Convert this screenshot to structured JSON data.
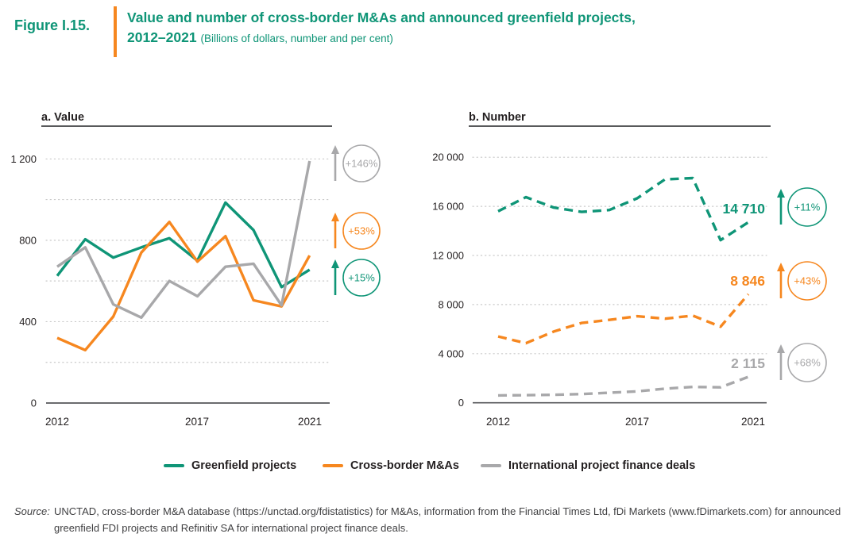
{
  "header": {
    "figure_label": "Figure I.15.",
    "title_line1": "Value and number of cross-border M&As and announced greenfield projects,",
    "title_range": "2012–2021",
    "title_subtitle": "(Billions of dollars, number and per cent)"
  },
  "colors": {
    "teal": "#0f9577",
    "orange": "#f6871f",
    "gray": "#a8a8aa",
    "dark": "#231f20",
    "axis": "#55565a",
    "grid": "#c9c9c9",
    "source_text": "#404042"
  },
  "chart_data": [
    {
      "id": "value",
      "type": "line",
      "title": "a. Value",
      "xlabel": "",
      "ylabel": "Billions of dollars",
      "x": [
        2012,
        2013,
        2014,
        2015,
        2016,
        2017,
        2018,
        2019,
        2020,
        2021
      ],
      "x_tick_labels": [
        "2012",
        "2017",
        "2021"
      ],
      "ylim": [
        0,
        1200
      ],
      "grid_step": 200,
      "y_ticks": [
        0,
        400,
        800,
        1200
      ],
      "y_tick_labels": [
        "0",
        "400",
        "800",
        "1 200"
      ],
      "series": [
        {
          "name": "Greenfield projects",
          "color_key": "teal",
          "style": "solid",
          "values": [
            625,
            805,
            715,
            765,
            810,
            700,
            985,
            850,
            570,
            655
          ]
        },
        {
          "name": "Cross-border M&As",
          "color_key": "orange",
          "style": "solid",
          "values": [
            320,
            260,
            425,
            740,
            890,
            695,
            820,
            505,
            475,
            725
          ]
        },
        {
          "name": "International project finance deals",
          "color_key": "gray",
          "style": "solid",
          "values": [
            670,
            765,
            485,
            420,
            600,
            525,
            670,
            685,
            480,
            1190
          ]
        }
      ],
      "badges": [
        {
          "label": "+146%",
          "color_key": "gray"
        },
        {
          "label": "+53%",
          "color_key": "orange"
        },
        {
          "label": "+15%",
          "color_key": "teal"
        }
      ]
    },
    {
      "id": "number",
      "type": "line",
      "title": "b. Number",
      "xlabel": "",
      "ylabel": "Number",
      "x": [
        2012,
        2013,
        2014,
        2015,
        2016,
        2017,
        2018,
        2019,
        2020,
        2021
      ],
      "x_tick_labels": [
        "2012",
        "2017",
        "2021"
      ],
      "ylim": [
        0,
        20000
      ],
      "grid_step": 4000,
      "y_ticks": [
        0,
        4000,
        8000,
        12000,
        16000,
        20000
      ],
      "y_tick_labels": [
        "0",
        "4 000",
        "8 000",
        "12 000",
        "16 000",
        "20 000"
      ],
      "series": [
        {
          "name": "Greenfield projects",
          "color_key": "teal",
          "style": "dashed",
          "values": [
            15600,
            16750,
            15900,
            15550,
            15700,
            16650,
            18200,
            18300,
            13250,
            14710
          ],
          "end_label": "14 710"
        },
        {
          "name": "Cross-border M&As",
          "color_key": "orange",
          "style": "dashed",
          "values": [
            5400,
            4850,
            5800,
            6500,
            6750,
            7050,
            6850,
            7100,
            6200,
            8846
          ],
          "end_label": "8 846"
        },
        {
          "name": "International project finance deals",
          "color_key": "gray",
          "style": "dashed",
          "values": [
            600,
            620,
            650,
            710,
            820,
            930,
            1150,
            1290,
            1260,
            2115
          ],
          "end_label": "2 115"
        }
      ],
      "badges": [
        {
          "label": "+11%",
          "color_key": "teal"
        },
        {
          "label": "+43%",
          "color_key": "orange"
        },
        {
          "label": "+68%",
          "color_key": "gray"
        }
      ]
    }
  ],
  "legend": {
    "items": [
      {
        "label": "Greenfield projects",
        "color_key": "teal"
      },
      {
        "label": "Cross-border M&As",
        "color_key": "orange"
      },
      {
        "label": "International project finance deals",
        "color_key": "gray"
      }
    ]
  },
  "source": {
    "label": "Source:",
    "text": "UNCTAD, cross-border M&A database (https://unctad.org/fdistatistics) for M&As, information from the Financial Times Ltd, fDi Markets (www.fDimarkets.com) for announced greenfield FDI projects and Refinitiv SA for international project finance deals."
  }
}
